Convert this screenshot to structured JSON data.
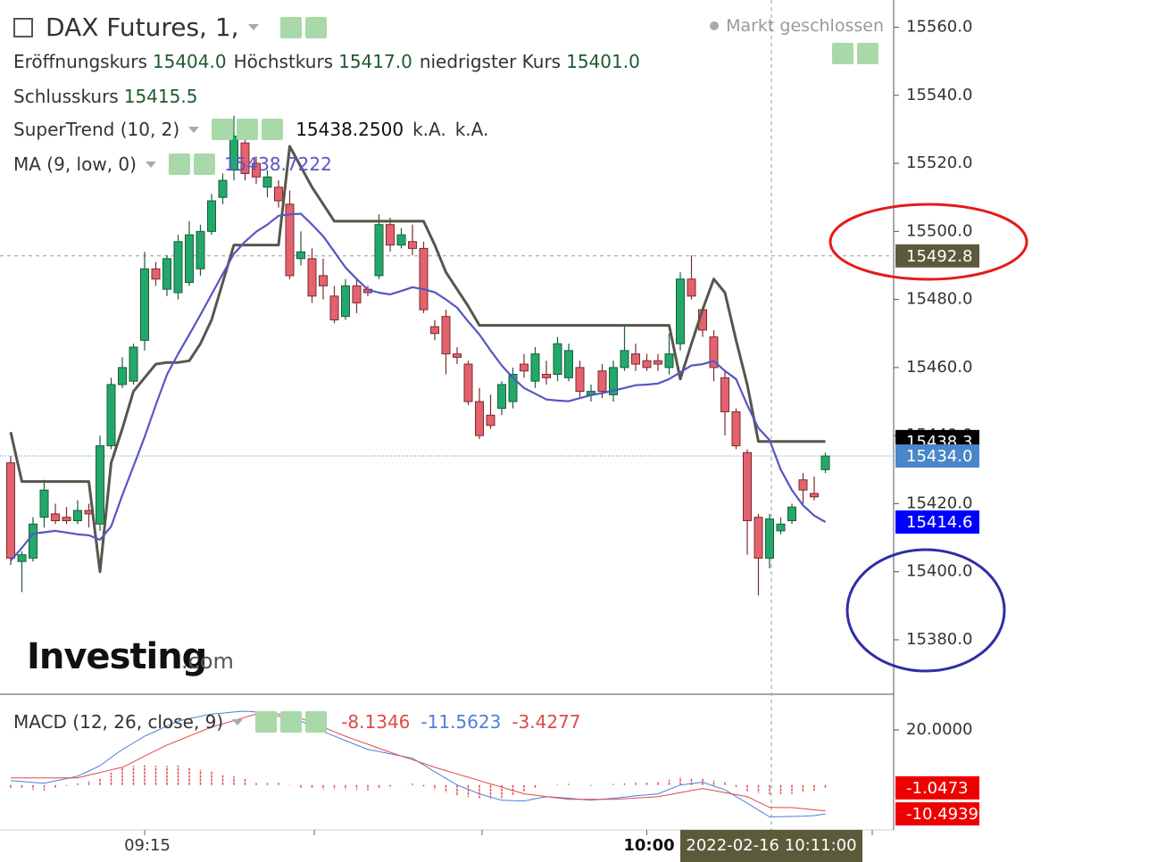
{
  "chart_data": {
    "type": "candlestick",
    "title": "DAX Futures, 1,",
    "status": "Markt geschlossen",
    "ohlc_readout": {
      "open_label": "Eröffnungskurs",
      "open": "15404.0",
      "high_label": "Höchstkurs",
      "high": "15417.0",
      "low_label": "niedrigster Kurs",
      "low": "15401.0",
      "close_label": "Schlusskurs",
      "close": "15415.5"
    },
    "categories": [
      null,
      null,
      null,
      null,
      null,
      null,
      null,
      null,
      null,
      null,
      null,
      null,
      "09:15",
      null,
      null,
      null,
      null,
      null,
      null,
      null,
      null,
      null,
      null,
      null,
      null,
      null,
      null,
      null,
      null,
      null,
      null,
      null,
      null,
      null,
      null,
      null,
      null,
      null,
      null,
      null,
      null,
      null,
      null,
      null,
      null,
      null,
      null,
      null,
      null,
      null,
      null,
      null,
      null,
      null,
      null,
      null,
      null,
      "10:00",
      null,
      null,
      null,
      null,
      null,
      null,
      null,
      null,
      null,
      null,
      null,
      null,
      null,
      null,
      null,
      null
    ],
    "open": [
      15432,
      15403,
      15404,
      15416,
      15417,
      15416,
      15415,
      15418,
      15414,
      15437,
      15455,
      15456,
      15468,
      15489,
      15483,
      15482,
      15485,
      15489,
      15500,
      15510,
      15518,
      15526,
      15520,
      15513,
      15513,
      15508,
      15492,
      15492,
      15487,
      15481,
      15475,
      15484,
      15483,
      15487,
      15502,
      15496,
      15497,
      15495,
      15472,
      15475,
      15464,
      15461,
      15450,
      15446,
      15448,
      15450,
      15461,
      15456,
      15458,
      15458,
      15457,
      15460,
      15452,
      15459,
      15452,
      15460,
      15464,
      15462,
      15462,
      15460,
      15467,
      15486,
      15477,
      15469,
      15457,
      15447,
      15435,
      15416,
      15404,
      15412,
      15415,
      15427,
      15423,
      15430
    ],
    "high": [
      15434,
      15406,
      15416,
      15427,
      15420,
      15419,
      15421,
      15420,
      15440,
      15457,
      15463,
      15467,
      15494,
      15491,
      15493,
      15499,
      15503,
      15502,
      15511,
      15517,
      15534,
      15530,
      15522,
      15518,
      15515,
      15512,
      15500,
      15495,
      15492,
      15484,
      15486,
      15486,
      15484,
      15505,
      15504,
      15501,
      15502,
      15497,
      15474,
      15477,
      15466,
      15462,
      15454,
      15452,
      15456,
      15460,
      15464,
      15466,
      15462,
      15469,
      15467,
      15462,
      15455,
      15461,
      15462,
      15472,
      15467,
      15464,
      15464,
      15470,
      15488,
      15493,
      15478,
      15471,
      15459,
      15448,
      15436,
      15417,
      15417,
      15416,
      15420,
      15429,
      15428,
      15435
    ],
    "low": [
      15402,
      15394,
      15403,
      15413,
      15414,
      15414,
      15414,
      15413,
      15412,
      15436,
      15454,
      15455,
      15465,
      15484,
      15481,
      15480,
      15484,
      15487,
      15499,
      15508,
      15515,
      15515,
      15514,
      15510,
      15507,
      15486,
      15490,
      15479,
      15480,
      15473,
      15474,
      15476,
      15481,
      15486,
      15494,
      15495,
      15493,
      15476,
      15468,
      15458,
      15461,
      15449,
      15439,
      15442,
      15446,
      15448,
      15457,
      15454,
      15455,
      15456,
      15456,
      15451,
      15450,
      15451,
      15450,
      15459,
      15459,
      15459,
      15459,
      15458,
      15465,
      15480,
      15469,
      15456,
      15440,
      15436,
      15405,
      15393,
      15401,
      15411,
      15414,
      15420,
      15421,
      15429
    ],
    "close": [
      15404,
      15405,
      15414,
      15424,
      15415,
      15415,
      15418,
      15417,
      15437,
      15455,
      15460,
      15466,
      15489,
      15486,
      15492,
      15497,
      15499,
      15500,
      15509,
      15515,
      15528,
      15517,
      15516,
      15516,
      15509,
      15487,
      15494,
      15481,
      15484,
      15474,
      15484,
      15479,
      15482,
      15502,
      15496,
      15499,
      15495,
      15477,
      15470,
      15464,
      15463,
      15450,
      15440,
      15443,
      15455,
      15458,
      15459,
      15464,
      15457,
      15467,
      15465,
      15453,
      15453,
      15453,
      15460,
      15465,
      15461,
      15460,
      15461,
      15464,
      15486,
      15481,
      15471,
      15460,
      15447,
      15437,
      15415,
      15404,
      15415.5,
      15414,
      15419,
      15424,
      15422,
      15434
    ],
    "up_color": "#23a86b",
    "down_color": "#e4626d",
    "ylim": [
      15364,
      15568
    ],
    "yticks": [
      {
        "value": 15380,
        "label": "15380.0"
      },
      {
        "value": 15400,
        "label": "15400.0"
      },
      {
        "value": 15420,
        "label": "15420.0"
      },
      {
        "value": 15440,
        "label": "15440.0"
      },
      {
        "value": 15460,
        "label": "15460.0"
      },
      {
        "value": 15480,
        "label": "15480.0"
      },
      {
        "value": 15500,
        "label": "15500.0"
      },
      {
        "value": 15520,
        "label": "15520.0"
      },
      {
        "value": 15540,
        "label": "15540.0"
      },
      {
        "value": 15560,
        "label": "15560.0"
      }
    ],
    "series": [
      {
        "name": "SuperTrend (10, 2)",
        "color": "#55574a",
        "readout": [
          "15438.2500",
          "k.A.",
          "k.A."
        ],
        "values": [
          15441,
          15426.5,
          15426.5,
          15426.5,
          15426.5,
          15426.5,
          15426.5,
          15426.5,
          15400,
          15432,
          15442,
          15453,
          15457,
          15461,
          15461.5,
          15461.5,
          15462,
          15467,
          15474,
          15485,
          15496,
          15496,
          15496,
          15496,
          15496,
          15525,
          15519,
          15513,
          15508,
          15503,
          15503,
          15503,
          15503,
          15503,
          15503,
          15503,
          15503,
          15503,
          15496,
          15488,
          15483,
          15478,
          15472.4,
          15472.4,
          15472.4,
          15472.4,
          15472.4,
          15472.4,
          15472.4,
          15472.4,
          15472.4,
          15472.4,
          15472.4,
          15472.4,
          15472.4,
          15472.4,
          15472.4,
          15472.4,
          15472.4,
          15472.4,
          15456.6,
          15467,
          15477,
          15486,
          15482,
          15468,
          15455,
          15438.25,
          15438.25,
          15438.25,
          15438.25,
          15438.25,
          15438.25,
          15438.25
        ]
      },
      {
        "name": "MA (9, low, 0)",
        "color": "#5656c4",
        "readout": [
          "15438.7222"
        ],
        "values": [
          15403.3,
          15407,
          15411.2,
          15411.6,
          15412,
          15411.5,
          15411,
          15410.7,
          15409.4,
          15413.3,
          15422.5,
          15431,
          15439.6,
          15449,
          15457.9,
          15464,
          15469.7,
          15475.5,
          15481.5,
          15487.5,
          15493.4,
          15497,
          15499.9,
          15502,
          15504.6,
          15505,
          15505.2,
          15502,
          15498.6,
          15494,
          15489.4,
          15486,
          15482.9,
          15482,
          15481.5,
          15482.5,
          15483.6,
          15483,
          15482.1,
          15480,
          15477.6,
          15473.5,
          15469.7,
          15465,
          15460.6,
          15457,
          15454,
          15452.3,
          15450.6,
          15450.3,
          15450.1,
          15451,
          15451.9,
          15452.5,
          15453.2,
          15454,
          15454.8,
          15455,
          15455.3,
          15456.6,
          15458.6,
          15460.6,
          15461,
          15461.9,
          15459,
          15456.6,
          15449,
          15442.2,
          15438.7,
          15430,
          15424,
          15419.5,
          15416.5,
          15414.6
        ]
      }
    ],
    "price_labels": [
      {
        "value": 15438.25,
        "label": "15438.3",
        "color": "#000000"
      },
      {
        "value": 15434,
        "label": "15434.0",
        "color": "#4a86c8"
      },
      {
        "value": 15414.6,
        "label": "15414.6",
        "color": "#0000ff"
      }
    ],
    "crosshair": {
      "time_label": "2022-02-16 10:11:00",
      "price": {
        "value": 15492.8,
        "label": "15492.8"
      },
      "color": "#5b5b3b"
    },
    "watermark": [
      "Investing",
      ".com"
    ],
    "macd": {
      "name": "MACD (12, 26, close, 9)",
      "ylim": [
        -16.3,
        32.3
      ],
      "yticks": [
        {
          "value": 20,
          "label": "20.0000"
        }
      ],
      "signal": {
        "color": "#e04848",
        "readout": "-8.1346",
        "values": [
          2.6,
          2.6,
          2.6,
          2.6,
          2.6,
          2.6,
          2.6,
          3.6,
          4.5,
          5.5,
          6.4,
          8.4,
          10.5,
          12.5,
          14.5,
          16.1,
          17.8,
          19.4,
          21.0,
          22.2,
          23.4,
          24.6,
          25.8,
          25.4,
          25.0,
          24.6,
          24.2,
          22.6,
          21.0,
          19.3,
          17.7,
          16.2,
          14.8,
          13.3,
          11.9,
          10.5,
          9.2,
          7.8,
          6.4,
          5.2,
          4.0,
          2.8,
          1.6,
          0.4,
          -0.8,
          -2.0,
          -3.2,
          -3.7,
          -4.2,
          -4.7,
          -5.2,
          -5.2,
          -5.2,
          -5.2,
          -5.2,
          -5.0,
          -4.7,
          -4.5,
          -4.2,
          -3.5,
          -2.8,
          -2.0,
          -1.3,
          -2.0,
          -2.8,
          -3.5,
          -4.2,
          -6.2,
          -8.1346,
          -8.2,
          -8.2,
          -8.6,
          -9.0,
          -9.4466
        ]
      },
      "macd_line": {
        "color": "#4f7fdc",
        "readout": "-11.5623",
        "last": {
          "value": -10.4939,
          "label": "-10.4939"
        },
        "values": [
          1.6,
          1.3,
          0.9,
          0.6,
          1.5,
          2.3,
          3.2,
          5.1,
          7.0,
          10.0,
          12.9,
          15.3,
          17.7,
          19.5,
          21.4,
          23.2,
          24.1,
          24.9,
          25.8,
          26.1,
          26.5,
          26.8,
          26.5,
          26.1,
          25.8,
          24.5,
          23.2,
          21.3,
          19.4,
          17.8,
          16.1,
          14.5,
          12.9,
          12.1,
          11.3,
          10.5,
          9.7,
          7.3,
          4.8,
          2.4,
          0,
          -1.6,
          -3.2,
          -4.4,
          -5.5,
          -5.7,
          -5.8,
          -5.0,
          -4.2,
          -4.5,
          -4.8,
          -5.2,
          -5.5,
          -5.2,
          -4.8,
          -4.4,
          -3.9,
          -3.6,
          -3.2,
          -1.6,
          0,
          0.5,
          1.0,
          -0.4,
          -1.7,
          -4.2,
          -6.6,
          -9.1,
          -11.5623,
          -11.5,
          -11.4,
          -11.3,
          -11.1,
          -10.4939
        ]
      },
      "histogram": {
        "color": "#e04848",
        "readout": "-3.4277",
        "last": {
          "value": -1.0473,
          "label": "-1.0473"
        },
        "values": [
          -1.0,
          -1.3,
          -1.7,
          -2.0,
          -1.1,
          -0.3,
          0.6,
          1.5,
          2.5,
          4.5,
          6.5,
          6.9,
          7.2,
          7.0,
          6.9,
          7.1,
          6.3,
          5.5,
          4.8,
          3.9,
          3.1,
          2.2,
          0.7,
          0.7,
          0.8,
          -0.1,
          -1.0,
          -1.3,
          -1.6,
          -1.5,
          -1.6,
          -1.7,
          -1.9,
          -1.2,
          -0.6,
          0,
          0.5,
          -0.5,
          -1.6,
          -2.8,
          -4.0,
          -4.4,
          -4.8,
          -4.8,
          -4.7,
          -3.7,
          -2.6,
          -1.3,
          0,
          0.2,
          0.4,
          0,
          -0.3,
          0,
          0.4,
          0.6,
          0.8,
          0.9,
          1.0,
          1.9,
          2.8,
          2.5,
          2.3,
          1.6,
          1.1,
          -0.7,
          -2.4,
          -2.9,
          -3.4277,
          -3.3,
          -3.2,
          -2.7,
          -2.1,
          -1.0473
        ]
      }
    }
  }
}
